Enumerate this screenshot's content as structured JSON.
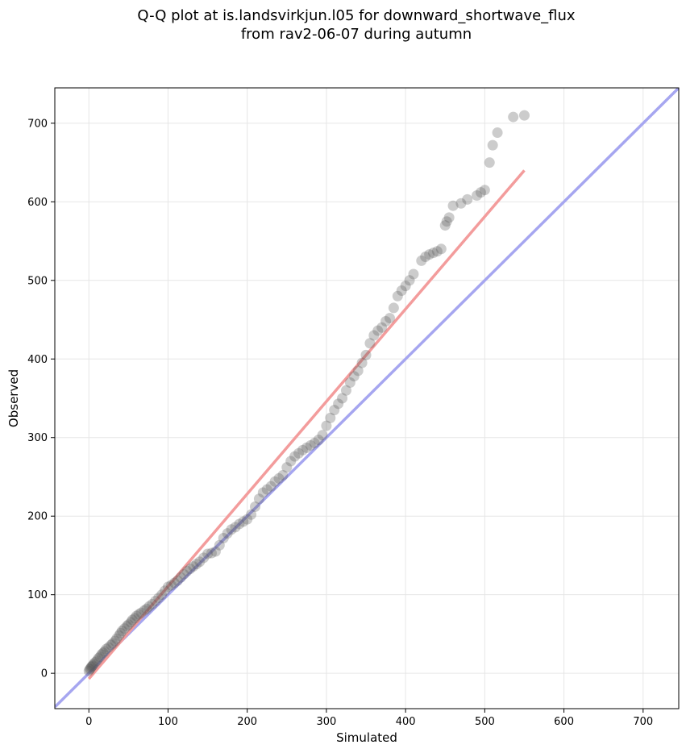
{
  "chart_data": {
    "type": "scatter",
    "title": "Q-Q plot at is.landsvirkjun.l05 for downward_shortwave_flux",
    "subtitle": "from rav2-06-07 during autumn",
    "xlabel": "Simulated",
    "ylabel": "Observed",
    "xlim": [
      -43,
      745
    ],
    "ylim": [
      -45,
      745
    ],
    "xticks": [
      0,
      100,
      200,
      300,
      400,
      500,
      600,
      700
    ],
    "yticks": [
      0,
      100,
      200,
      300,
      400,
      500,
      600,
      700
    ],
    "grid": true,
    "points": {
      "x": [
        0,
        1,
        2,
        3,
        4,
        5,
        6,
        8,
        10,
        12,
        14,
        16,
        18,
        20,
        22,
        25,
        28,
        30,
        33,
        35,
        38,
        40,
        42,
        45,
        48,
        50,
        53,
        55,
        58,
        60,
        63,
        66,
        70,
        73,
        76,
        80,
        84,
        88,
        92,
        96,
        100,
        104,
        108,
        112,
        116,
        120,
        124,
        128,
        132,
        136,
        140,
        145,
        150,
        155,
        160,
        165,
        170,
        175,
        180,
        185,
        190,
        195,
        200,
        205,
        210,
        215,
        220,
        225,
        230,
        235,
        240,
        245,
        250,
        255,
        260,
        265,
        270,
        275,
        280,
        285,
        290,
        295,
        300,
        305,
        310,
        315,
        320,
        325,
        330,
        335,
        340,
        345,
        350,
        355,
        360,
        365,
        370,
        375,
        380,
        385,
        390,
        395,
        400,
        405,
        410,
        420,
        425,
        430,
        435,
        440,
        445,
        450,
        452,
        455,
        460,
        470,
        478,
        490,
        495,
        500,
        506,
        510,
        516,
        536,
        550
      ],
      "y": [
        3,
        5,
        6,
        8,
        9,
        10,
        12,
        14,
        16,
        19,
        21,
        24,
        26,
        28,
        31,
        33,
        36,
        38,
        41,
        44,
        48,
        51,
        54,
        57,
        60,
        62,
        65,
        68,
        70,
        73,
        75,
        77,
        80,
        82,
        85,
        88,
        92,
        96,
        100,
        105,
        110,
        112,
        115,
        118,
        122,
        126,
        130,
        133,
        136,
        139,
        142,
        147,
        152,
        153,
        155,
        163,
        172,
        178,
        183,
        186,
        190,
        193,
        196,
        202,
        212,
        222,
        230,
        234,
        238,
        244,
        248,
        252,
        262,
        270,
        276,
        280,
        284,
        287,
        290,
        293,
        297,
        303,
        315,
        325,
        335,
        343,
        350,
        360,
        370,
        378,
        385,
        395,
        405,
        420,
        430,
        436,
        440,
        448,
        452,
        465,
        480,
        487,
        493,
        500,
        508,
        525,
        530,
        533,
        535,
        537,
        540,
        570,
        575,
        580,
        595,
        598,
        603,
        608,
        612,
        615,
        650,
        672,
        688,
        708,
        710
      ]
    },
    "fit_line": {
      "x": [
        0,
        550
      ],
      "y": [
        -7,
        640
      ]
    },
    "identity_line": {
      "x": [
        -43,
        745
      ],
      "y": [
        -43,
        745
      ]
    },
    "colors": {
      "points": "#555555",
      "fit_line": "#f39c9c",
      "identity_line": "#a6a6f0",
      "grid": "#e6e6e6"
    }
  }
}
